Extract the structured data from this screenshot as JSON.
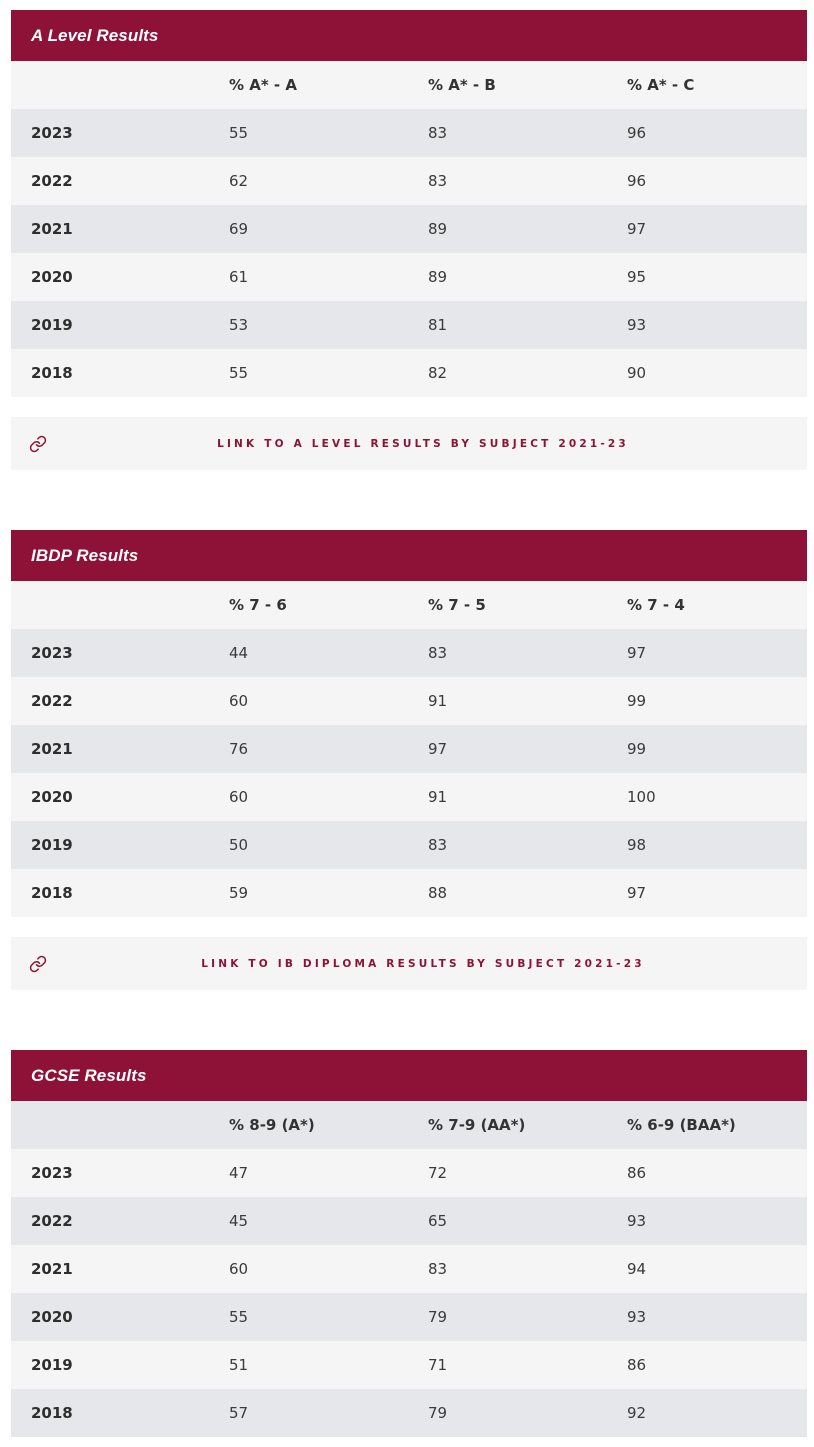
{
  "accent_color": "#8e1237",
  "sections": [
    {
      "title": "A Level Results",
      "headers": [
        "",
        "% A* - A",
        "% A* - B",
        "% A* - C"
      ],
      "rows": [
        [
          "2023",
          "55",
          "83",
          "96"
        ],
        [
          "2022",
          "62",
          "83",
          "96"
        ],
        [
          "2021",
          "69",
          "89",
          "97"
        ],
        [
          "2020",
          "61",
          "89",
          "95"
        ],
        [
          "2019",
          "53",
          "81",
          "93"
        ],
        [
          "2018",
          "55",
          "82",
          "90"
        ]
      ],
      "link": {
        "icon": "link-icon",
        "label": "LINK TO A LEVEL RESULTS BY SUBJECT 2021-23"
      }
    },
    {
      "title": "IBDP Results",
      "headers": [
        "",
        "% 7 - 6",
        "% 7 - 5",
        "% 7 - 4"
      ],
      "rows": [
        [
          "2023",
          "44",
          "83",
          "97"
        ],
        [
          "2022",
          "60",
          "91",
          "99"
        ],
        [
          "2021",
          "76",
          "97",
          "99"
        ],
        [
          "2020",
          "60",
          "91",
          "100"
        ],
        [
          "2019",
          "50",
          "83",
          "98"
        ],
        [
          "2018",
          "59",
          "88",
          "97"
        ]
      ],
      "link": {
        "icon": "link-icon",
        "label": "LINK TO IB DIPLOMA RESULTS BY SUBJECT 2021-23"
      }
    },
    {
      "title": "GCSE Results",
      "headers": [
        "",
        "% 8-9  (A*)",
        "% 7-9 (AA*)",
        "% 6-9 (BAA*)"
      ],
      "rows": [
        [
          "2023",
          "47",
          "72",
          "86"
        ],
        [
          "2022",
          "45",
          "65",
          "93"
        ],
        [
          "2021",
          "60",
          "83",
          "94"
        ],
        [
          "2020",
          "55",
          "79",
          "93"
        ],
        [
          "2019",
          "51",
          "71",
          "86"
        ],
        [
          "2018",
          "57",
          "79",
          "92"
        ]
      ]
    }
  ]
}
